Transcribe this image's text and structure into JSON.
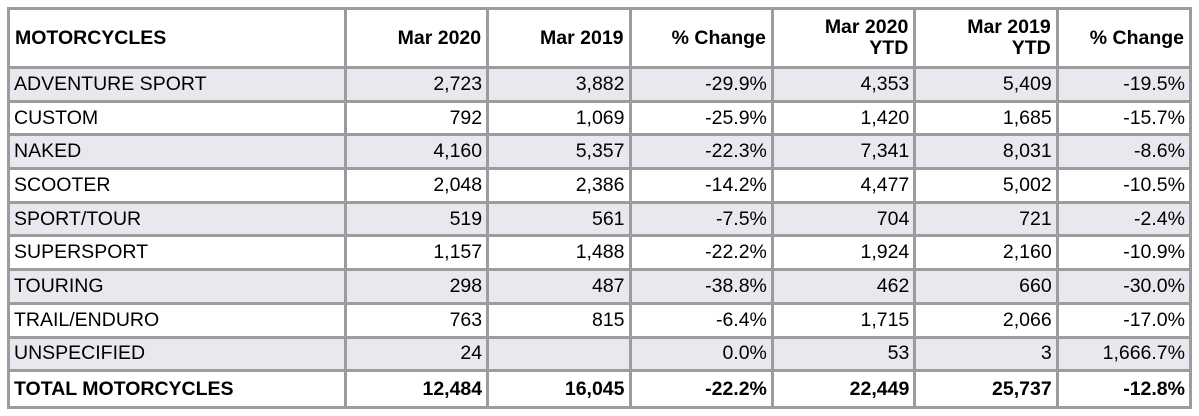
{
  "headers": [
    "MOTORCYCLES",
    "Mar 2020",
    "Mar 2019",
    "% Change",
    "Mar 2020 YTD",
    "Mar 2019 YTD",
    "% Change"
  ],
  "header_lines": [
    [
      "MOTORCYCLES"
    ],
    [
      "Mar 2020"
    ],
    [
      "Mar 2019"
    ],
    [
      "% Change"
    ],
    [
      "Mar 2020",
      "YTD"
    ],
    [
      "Mar 2019",
      "YTD"
    ],
    [
      "% Change"
    ]
  ],
  "rows": [
    [
      "ADVENTURE SPORT",
      "2,723",
      "3,882",
      "-29.9%",
      "4,353",
      "5,409",
      "-19.5%"
    ],
    [
      "CUSTOM",
      "792",
      "1,069",
      "-25.9%",
      "1,420",
      "1,685",
      "-15.7%"
    ],
    [
      "NAKED",
      "4,160",
      "5,357",
      "-22.3%",
      "7,341",
      "8,031",
      "-8.6%"
    ],
    [
      "SCOOTER",
      "2,048",
      "2,386",
      "-14.2%",
      "4,477",
      "5,002",
      "-10.5%"
    ],
    [
      "SPORT/TOUR",
      "519",
      "561",
      "-7.5%",
      "704",
      "721",
      "-2.4%"
    ],
    [
      "SUPERSPORT",
      "1,157",
      "1,488",
      "-22.2%",
      "1,924",
      "2,160",
      "-10.9%"
    ],
    [
      "TOURING",
      "298",
      "487",
      "-38.8%",
      "462",
      "660",
      "-30.0%"
    ],
    [
      "TRAIL/ENDURO",
      "763",
      "815",
      "-6.4%",
      "1,715",
      "2,066",
      "-17.0%"
    ],
    [
      "UNSPECIFIED",
      "24",
      "",
      "0.0%",
      "53",
      "3",
      "1,666.7%"
    ]
  ],
  "total": [
    "TOTAL MOTORCYCLES",
    "12,484",
    "16,045",
    "-22.2%",
    "22,449",
    "25,737",
    "-12.8%"
  ],
  "colors": {
    "border": "#9c9c9c",
    "row_shade": "#e8e8ee",
    "cell": "#ffffff"
  }
}
